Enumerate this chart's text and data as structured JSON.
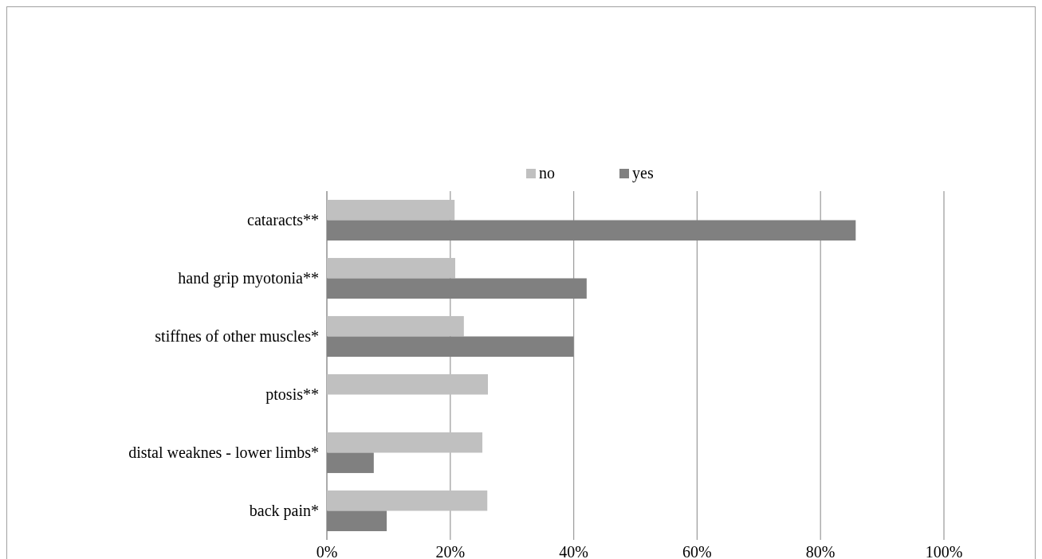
{
  "chart_data": {
    "type": "bar",
    "orientation": "horizontal",
    "categories": [
      "cataracts**",
      "hand grip myotonia**",
      "stiffnes of other muscles*",
      "ptosis**",
      "distal weaknes - lower limbs*",
      "back pain*"
    ],
    "series": [
      {
        "name": "no",
        "color": "#c0c0c0",
        "values": [
          20.7,
          20.8,
          22.2,
          26.1,
          25.2,
          26.0
        ]
      },
      {
        "name": "yes",
        "color": "#808080",
        "values": [
          85.7,
          42.1,
          40.0,
          0,
          7.6,
          9.7
        ]
      }
    ],
    "xlim": [
      0,
      100
    ],
    "xticks": [
      {
        "value": 0,
        "label": "0%"
      },
      {
        "value": 20,
        "label": "20%"
      },
      {
        "value": 40,
        "label": "40%"
      },
      {
        "value": 60,
        "label": "60%"
      },
      {
        "value": 80,
        "label": "80%"
      },
      {
        "value": 100,
        "label": "100%"
      }
    ],
    "grid": "x",
    "legend": "top"
  }
}
